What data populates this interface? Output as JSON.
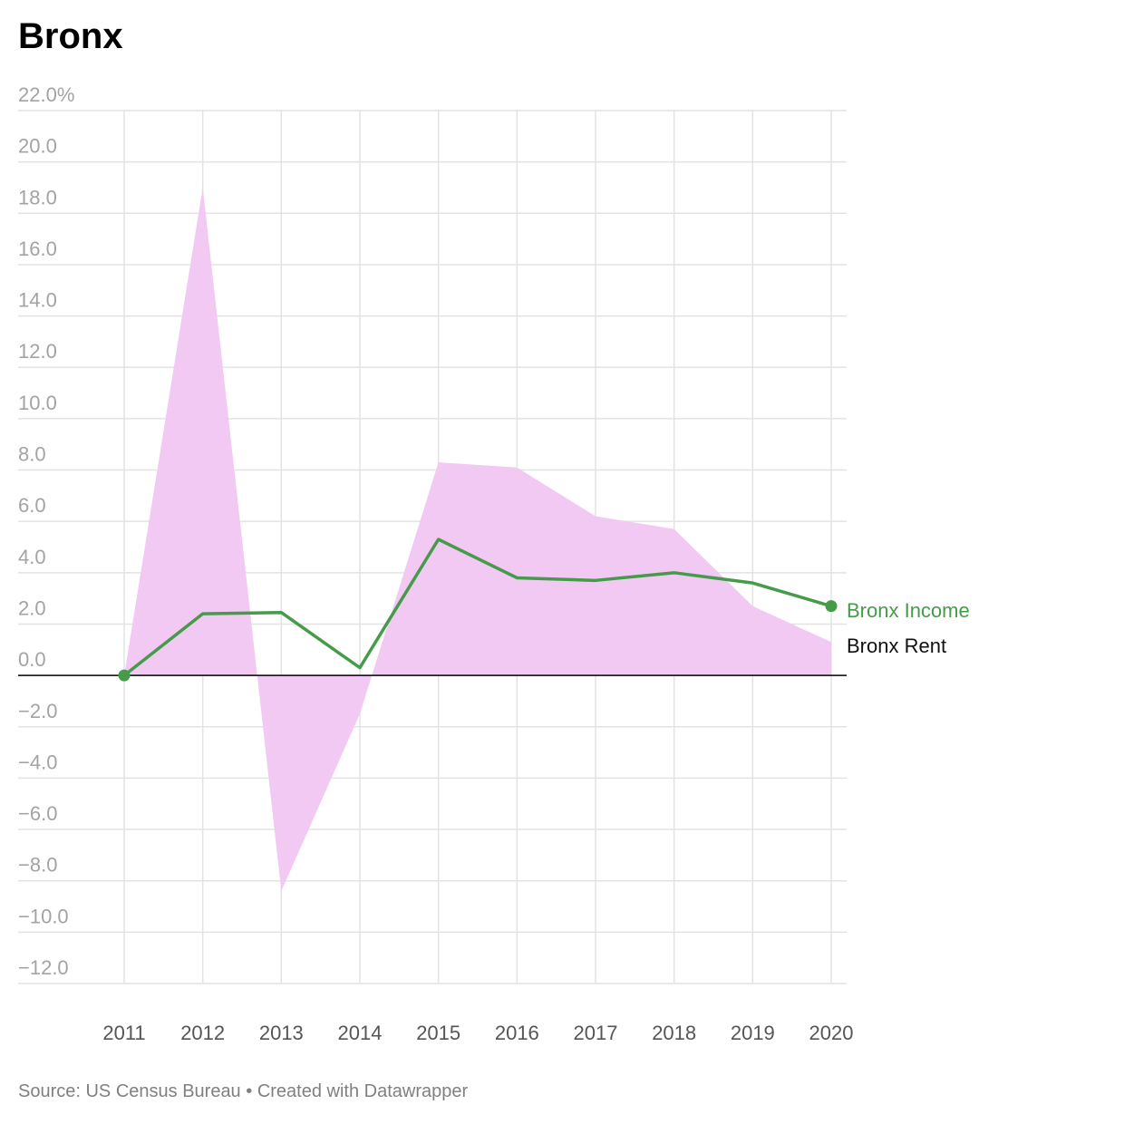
{
  "title": "Bronx",
  "footer": {
    "source": "Source: US Census Bureau",
    "separator": "•",
    "credit": "Created with Datawrapper"
  },
  "chart_data": {
    "type": "line",
    "x": [
      "2011",
      "2012",
      "2013",
      "2014",
      "2015",
      "2016",
      "2017",
      "2018",
      "2019",
      "2020"
    ],
    "yticks": [
      22,
      20,
      18,
      16,
      14,
      12,
      10,
      8,
      6,
      4,
      2,
      0,
      -2,
      -4,
      -6,
      -8,
      -10,
      -12
    ],
    "ytick_labels": [
      "22.0%",
      "20.0",
      "18.0",
      "16.0",
      "14.0",
      "12.0",
      "10.0",
      "8.0",
      "6.0",
      "4.0",
      "2.0",
      "0.0",
      "−2.0",
      "−4.0",
      "−6.0",
      "−8.0",
      "−10.0",
      "−12.0"
    ],
    "ylim": [
      -12,
      22
    ],
    "grid": true,
    "series": [
      {
        "name": "Bronx Rent",
        "style": "area",
        "color": "#f2c9f2",
        "label_color": "#111111",
        "values": [
          0.0,
          19.0,
          -8.4,
          -1.5,
          8.3,
          8.1,
          6.2,
          5.7,
          2.7,
          1.3
        ]
      },
      {
        "name": "Bronx Income",
        "style": "line",
        "color": "#459b4a",
        "label_color": "#459b4a",
        "values": [
          0.0,
          2.4,
          2.45,
          0.3,
          5.3,
          3.8,
          3.7,
          4.0,
          3.6,
          2.7
        ]
      }
    ]
  }
}
